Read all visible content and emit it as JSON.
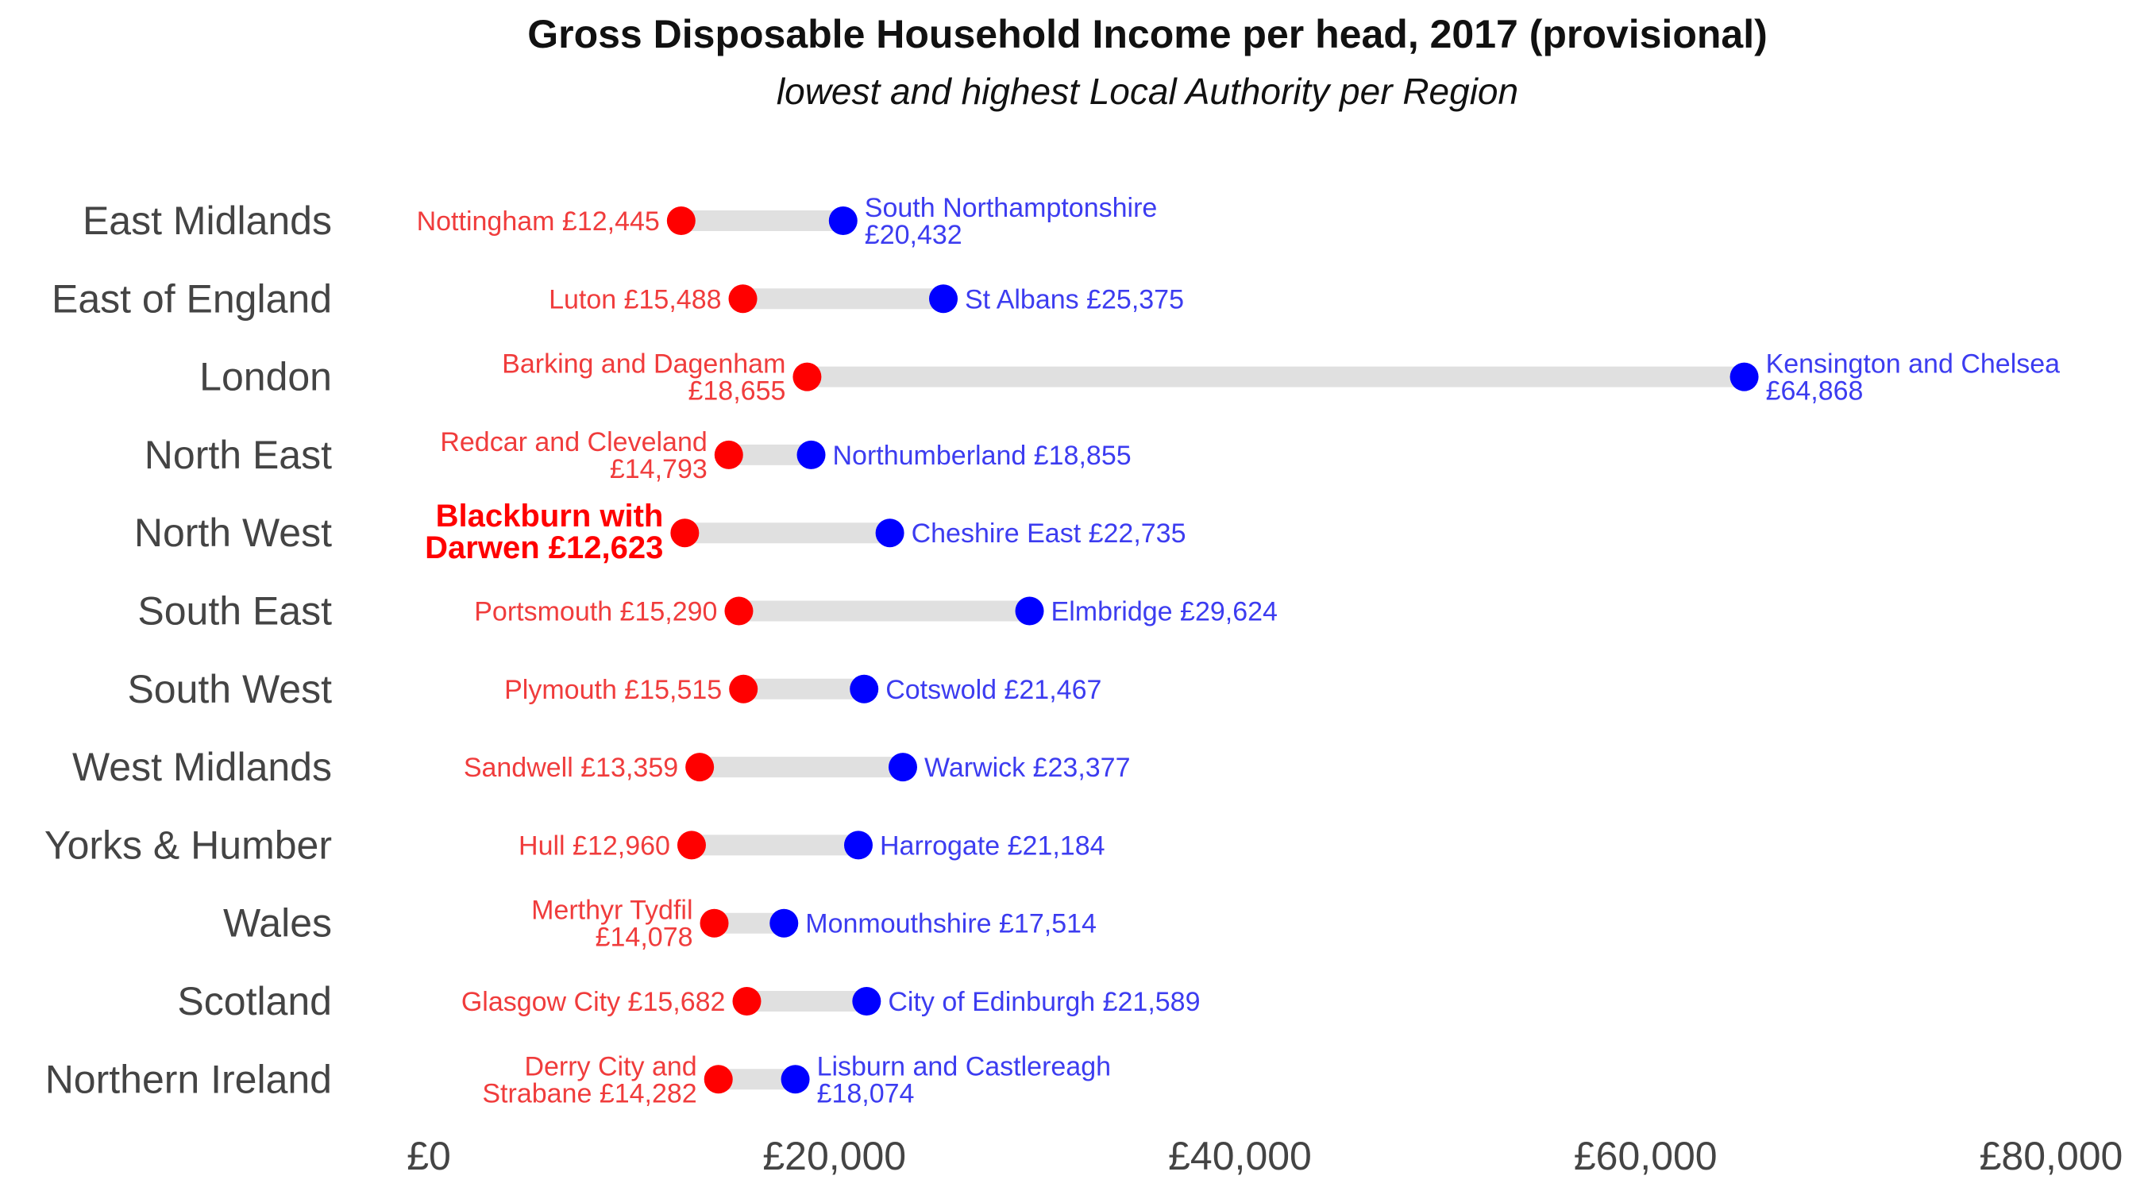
{
  "title": "Gross Disposable Household Income per head, 2017 (provisional)",
  "subtitle": "lowest and highest Local Authority per Region",
  "colors": {
    "low": "#ff0000",
    "high": "#0000ff",
    "low_text": "#f03c3c",
    "high_text": "#3c3cf0",
    "segment": "#e0e0e0"
  },
  "chart_data": {
    "type": "dumbbell",
    "title": "Gross Disposable Household Income per head, 2017 (provisional)",
    "subtitle": "lowest and highest Local Authority per Region",
    "xlim": [
      0,
      80000
    ],
    "x_ticks": [
      0,
      20000,
      40000,
      60000,
      80000
    ],
    "x_tick_labels": [
      "£0",
      "£20,000",
      "£40,000",
      "£60,000",
      "£80,000"
    ],
    "grid": false,
    "rows": [
      {
        "region": "East Midlands",
        "low": 12445,
        "low_label": [
          "Nottingham £12,445"
        ],
        "high": 20432,
        "high_label": [
          "South Northamptonshire",
          "£20,432"
        ]
      },
      {
        "region": "East of England",
        "low": 15488,
        "low_label": [
          "Luton £15,488"
        ],
        "high": 25375,
        "high_label": [
          "St Albans £25,375"
        ]
      },
      {
        "region": "London",
        "low": 18655,
        "low_label": [
          "Barking and Dagenham",
          "£18,655"
        ],
        "high": 64868,
        "high_label": [
          "Kensington and Chelsea",
          "£64,868"
        ]
      },
      {
        "region": "North East",
        "low": 14793,
        "low_label": [
          "Redcar and Cleveland",
          "£14,793"
        ],
        "high": 18855,
        "high_label": [
          "Northumberland £18,855"
        ]
      },
      {
        "region": "North West",
        "low": 12623,
        "low_label": [
          "Blackburn with",
          "Darwen £12,623"
        ],
        "high": 22735,
        "high_label": [
          "Cheshire East £22,735"
        ],
        "highlight": true
      },
      {
        "region": "South East",
        "low": 15290,
        "low_label": [
          "Portsmouth £15,290"
        ],
        "high": 29624,
        "high_label": [
          "Elmbridge £29,624"
        ]
      },
      {
        "region": "South West",
        "low": 15515,
        "low_label": [
          "Plymouth £15,515"
        ],
        "high": 21467,
        "high_label": [
          "Cotswold £21,467"
        ]
      },
      {
        "region": "West Midlands",
        "low": 13359,
        "low_label": [
          "Sandwell £13,359"
        ],
        "high": 23377,
        "high_label": [
          "Warwick £23,377"
        ]
      },
      {
        "region": "Yorks & Humber",
        "low": 12960,
        "low_label": [
          "Hull £12,960"
        ],
        "high": 21184,
        "high_label": [
          "Harrogate £21,184"
        ]
      },
      {
        "region": "Wales",
        "low": 14078,
        "low_label": [
          "Merthyr Tydfil",
          "£14,078"
        ],
        "high": 17514,
        "high_label": [
          "Monmouthshire £17,514"
        ]
      },
      {
        "region": "Scotland",
        "low": 15682,
        "low_label": [
          "Glasgow City £15,682"
        ],
        "high": 21589,
        "high_label": [
          "City of Edinburgh £21,589"
        ]
      },
      {
        "region": "Northern Ireland",
        "low": 14282,
        "low_label": [
          "Derry City and",
          "Strabane £14,282"
        ],
        "high": 18074,
        "high_label": [
          "Lisburn and Castlereagh",
          "£18,074"
        ]
      }
    ]
  }
}
